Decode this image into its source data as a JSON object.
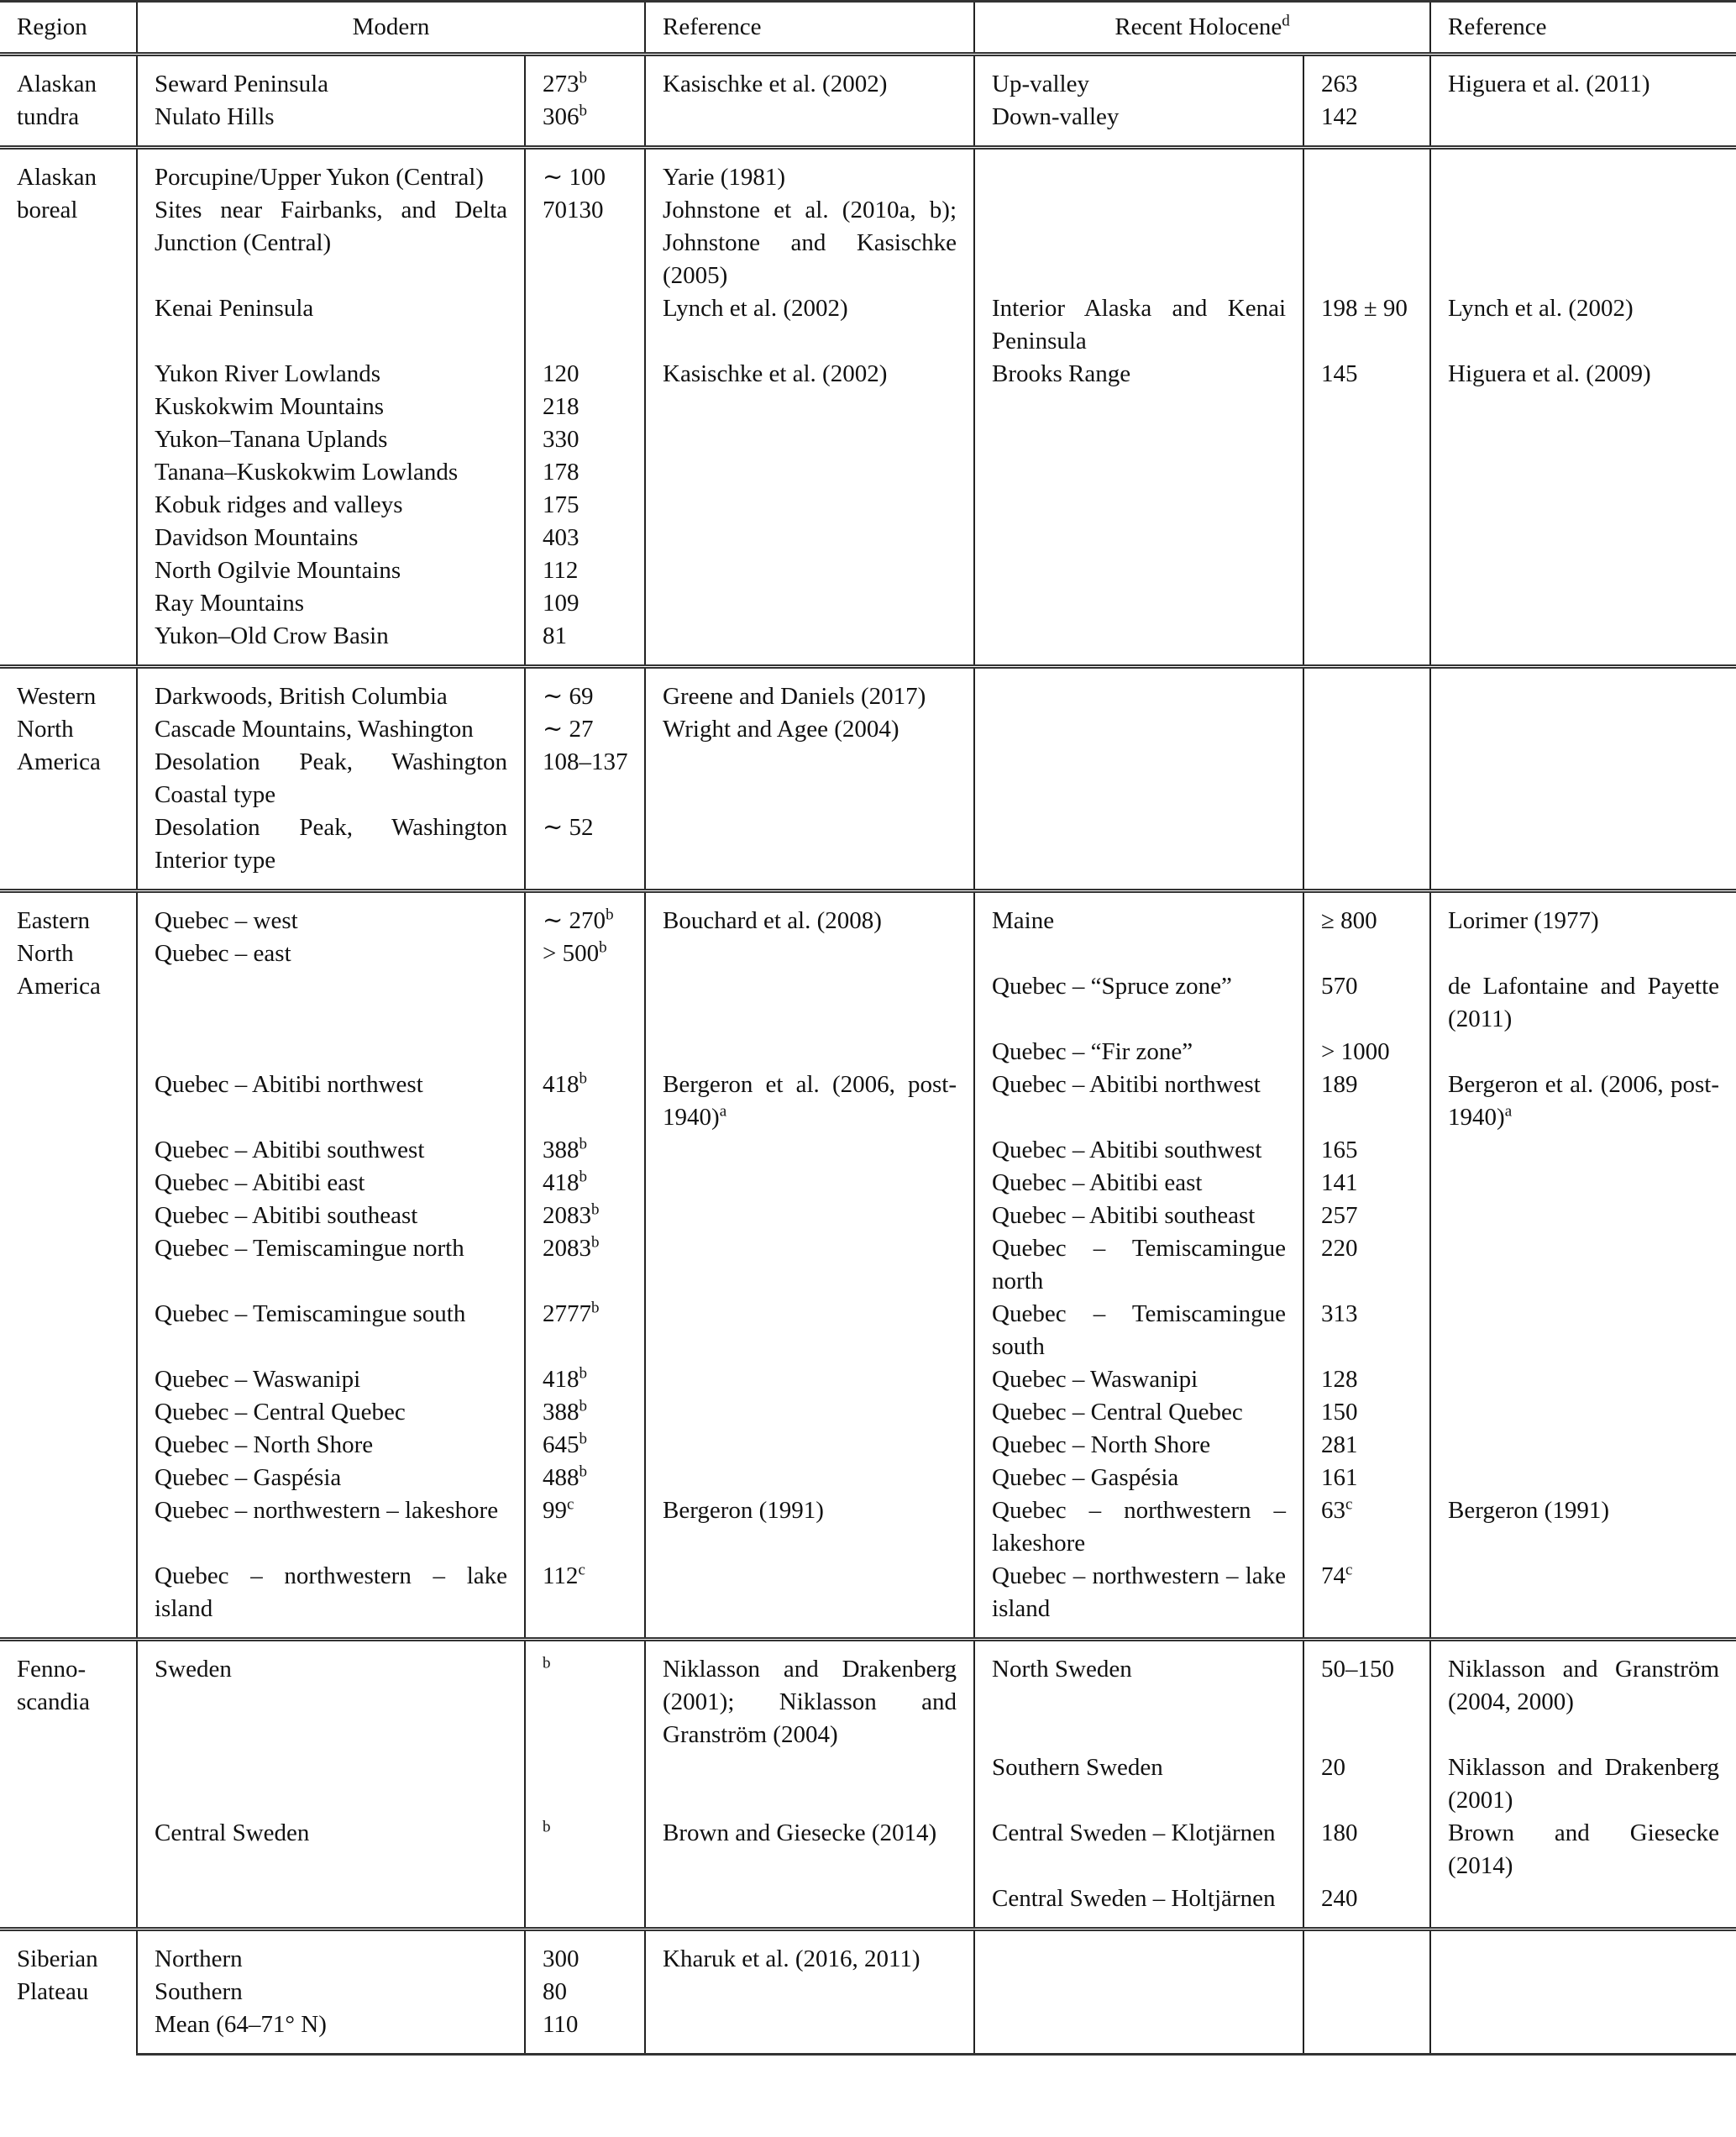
{
  "header": {
    "region": "Region",
    "modern": "Modern",
    "reference1": "Reference",
    "recent_holocene": "Recent Holocene",
    "recent_holocene_sup": "d",
    "reference2": "Reference"
  },
  "groups": [
    {
      "region": "Alaskan tundra",
      "rows": [
        {
          "m": "Seward Peninsula",
          "mv": {
            "t": "273",
            "s": "b"
          },
          "r": "Kasischke et al. (2002)",
          "h": "Up-valley",
          "hv": "263",
          "hr": "Higuera et al. (2011)"
        },
        {
          "m": "Nulato Hills",
          "mv": {
            "t": "306",
            "s": "b"
          },
          "r": "",
          "h": "Down-valley",
          "hv": "142",
          "hr": ""
        }
      ]
    },
    {
      "region": "Alaskan boreal",
      "rows": [
        {
          "m": "Porcupine/Upper Yukon (Central)",
          "mv": "∼ 100",
          "r": "Yarie (1981)",
          "h": "",
          "hv": "",
          "hr": ""
        },
        {
          "m": "Sites near Fairbanks, and Delta Junction (Central)",
          "mv": "70130",
          "r": "Johnstone et al. (2010a, b); Johnstone and Kasischke (2005)",
          "h": "",
          "hv": "",
          "hr": ""
        },
        {
          "m": "Kenai Peninsula",
          "mv": "",
          "r": "Lynch et al. (2002)",
          "h": "Interior Alaska and Kenai Peninsula",
          "hv": "198 ± 90",
          "hr": "Lynch et al. (2002)"
        },
        {
          "m": "Yukon River Lowlands",
          "mv": "120",
          "r": "Kasischke et al. (2002)",
          "h": "Brooks Range",
          "hv": "145",
          "hr": "Higuera et al. (2009)"
        },
        {
          "m": "Kuskokwim Mountains",
          "mv": "218",
          "r": "",
          "h": "",
          "hv": "",
          "hr": ""
        },
        {
          "m": "Yukon–Tanana Uplands",
          "mv": "330",
          "r": "",
          "h": "",
          "hv": "",
          "hr": ""
        },
        {
          "m": "Tanana–Kuskokwim Lowlands",
          "mv": "178",
          "r": "",
          "h": "",
          "hv": "",
          "hr": ""
        },
        {
          "m": "Kobuk ridges and valleys",
          "mv": "175",
          "r": "",
          "h": "",
          "hv": "",
          "hr": ""
        },
        {
          "m": "Davidson Mountains",
          "mv": "403",
          "r": "",
          "h": "",
          "hv": "",
          "hr": ""
        },
        {
          "m": "North Ogilvie Mountains",
          "mv": "112",
          "r": "",
          "h": "",
          "hv": "",
          "hr": ""
        },
        {
          "m": "Ray Mountains",
          "mv": "109",
          "r": "",
          "h": "",
          "hv": "",
          "hr": ""
        },
        {
          "m": "Yukon–Old Crow Basin",
          "mv": "81",
          "r": "",
          "h": "",
          "hv": "",
          "hr": ""
        }
      ]
    },
    {
      "region": "Western North America",
      "rows": [
        {
          "m": "Darkwoods, British Columbia",
          "mv": "∼ 69",
          "r": "Greene and Daniels (2017)",
          "h": "",
          "hv": "",
          "hr": ""
        },
        {
          "m": "Cascade Mountains, Washington",
          "mv": "∼ 27",
          "r": "Wright and Agee (2004)",
          "h": "",
          "hv": "",
          "hr": ""
        },
        {
          "m": "Desolation Peak, Washington Coastal type",
          "mv": "108–137",
          "r": "",
          "h": "",
          "hv": "",
          "hr": ""
        },
        {
          "m": "Desolation Peak, Washington Interior type",
          "mv": "∼ 52",
          "r": "",
          "h": "",
          "hv": "",
          "hr": ""
        }
      ]
    },
    {
      "region": "Eastern North America",
      "rows": [
        {
          "m": "Quebec – west",
          "mv": {
            "t": "∼ 270",
            "s": "b"
          },
          "r": "Bouchard et al. (2008)",
          "h": "Maine",
          "hv": "≥ 800",
          "hr": "Lorimer (1977)"
        },
        {
          "m": "Quebec – east",
          "mv": {
            "t": "> 500",
            "s": "b"
          },
          "r": "",
          "h": "",
          "hv": "",
          "hr": ""
        },
        {
          "m": "",
          "mv": "",
          "r": "",
          "h": "Quebec – “Spruce zone”",
          "hv": "570",
          "hr": "de Lafontaine and Payette (2011)"
        },
        {
          "m": "",
          "mv": "",
          "r": "",
          "h": "Quebec – “Fir zone”",
          "hv": "> 1000",
          "hr": ""
        },
        {
          "m": "Quebec – Abitibi northwest",
          "mv": {
            "t": "418",
            "s": "b"
          },
          "r": {
            "t": "Bergeron et al. (2006, post-1940)",
            "s": "a"
          },
          "h": "Quebec – Abitibi northwest",
          "hv": "189",
          "hr": {
            "t": "Bergeron et al. (2006, post-1940)",
            "s": "a"
          }
        },
        {
          "m": "Quebec – Abitibi southwest",
          "mv": {
            "t": "388",
            "s": "b"
          },
          "r": "",
          "h": "Quebec – Abitibi southwest",
          "hv": "165",
          "hr": ""
        },
        {
          "m": "Quebec – Abitibi east",
          "mv": {
            "t": "418",
            "s": "b"
          },
          "r": "",
          "h": "Quebec – Abitibi east",
          "hv": "141",
          "hr": ""
        },
        {
          "m": "Quebec – Abitibi southeast",
          "mv": {
            "t": "2083",
            "s": "b"
          },
          "r": "",
          "h": "Quebec – Abitibi southeast",
          "hv": "257",
          "hr": ""
        },
        {
          "m": "Quebec – Temiscamingue north",
          "mv": {
            "t": "2083",
            "s": "b"
          },
          "r": "",
          "h": "Quebec – Temiscamingue north",
          "hv": "220",
          "hr": ""
        },
        {
          "m": "Quebec – Temiscamingue south",
          "mv": {
            "t": "2777",
            "s": "b"
          },
          "r": "",
          "h": "Quebec – Temiscamingue south",
          "hv": "313",
          "hr": ""
        },
        {
          "m": "Quebec – Waswanipi",
          "mv": {
            "t": "418",
            "s": "b"
          },
          "r": "",
          "h": "Quebec – Waswanipi",
          "hv": "128",
          "hr": ""
        },
        {
          "m": "Quebec – Central Quebec",
          "mv": {
            "t": "388",
            "s": "b"
          },
          "r": "",
          "h": "Quebec – Central Quebec",
          "hv": "150",
          "hr": ""
        },
        {
          "m": "Quebec – North Shore",
          "mv": {
            "t": "645",
            "s": "b"
          },
          "r": "",
          "h": "Quebec – North Shore",
          "hv": "281",
          "hr": ""
        },
        {
          "m": "Quebec – Gaspésia",
          "mv": {
            "t": "488",
            "s": "b"
          },
          "r": "",
          "h": "Quebec – Gaspésia",
          "hv": "161",
          "hr": ""
        },
        {
          "m": "Quebec – northwestern – lakeshore",
          "mv": {
            "t": "99",
            "s": "c"
          },
          "r": "Bergeron (1991)",
          "h": "Quebec – northwestern – lakeshore",
          "hv": {
            "t": "63",
            "s": "c"
          },
          "hr": "Bergeron (1991)"
        },
        {
          "m": "Quebec – northwestern – lake island",
          "mv": {
            "t": "112",
            "s": "c"
          },
          "r": "",
          "h": "Quebec – northwestern – lake island",
          "hv": {
            "t": "74",
            "s": "c"
          },
          "hr": ""
        }
      ]
    },
    {
      "region": "Fenno-scandia",
      "rows": [
        {
          "m": "Sweden",
          "mv": {
            "t": "",
            "s": "b"
          },
          "r": "Niklasson and Drakenberg (2001); Niklasson and Granström (2004)",
          "h": "North Sweden",
          "hv": "50–150",
          "hr": "Niklasson and Granström (2004, 2000)"
        },
        {
          "m": "",
          "mv": "",
          "r": "",
          "h": "Southern Sweden",
          "hv": "20",
          "hr": "Niklasson and Drakenberg (2001)"
        },
        {
          "m": "Central Sweden",
          "mv": {
            "t": "",
            "s": "b"
          },
          "r": "Brown and Giesecke (2014)",
          "h": "Central Sweden – Klotjärnen",
          "hv": "180",
          "hr": "Brown and Giesecke (2014)"
        },
        {
          "m": "",
          "mv": "",
          "r": "",
          "h": "Central Sweden – Holtjärnen",
          "hv": "240",
          "hr": ""
        }
      ]
    },
    {
      "region": "Siberian Plateau",
      "rows": [
        {
          "m": "Northern",
          "mv": "300",
          "r": "Kharuk et al. (2016, 2011)",
          "h": "",
          "hv": "",
          "hr": ""
        },
        {
          "m": "Southern",
          "mv": "80",
          "r": "",
          "h": "",
          "hv": "",
          "hr": ""
        },
        {
          "m": "Mean (64–71° N)",
          "mv": "110",
          "r": "",
          "h": "",
          "hv": "",
          "hr": ""
        }
      ]
    }
  ]
}
